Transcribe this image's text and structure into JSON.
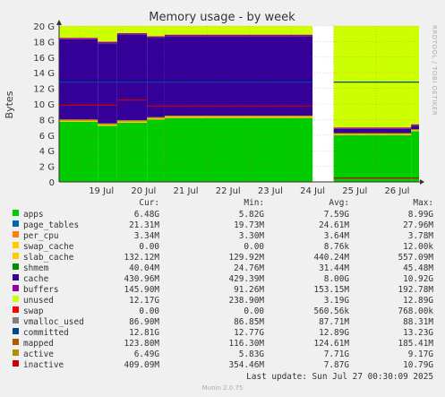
{
  "chart_data": {
    "type": "area",
    "title": "Memory usage - by week",
    "ylabel": "Bytes",
    "side_text": "RRDTOOL / TOBI OETIKER",
    "ylim": [
      0,
      20
    ],
    "y_unit": "G",
    "y_ticks": [
      "0",
      "2 G",
      "4 G",
      "6 G",
      "8 G",
      "10 G",
      "12 G",
      "14 G",
      "16 G",
      "18 G",
      "20 G"
    ],
    "x_ticks": [
      "19 Jul",
      "20 Jul",
      "21 Jul",
      "22 Jul",
      "23 Jul",
      "24 Jul",
      "25 Jul",
      "26 Jul"
    ],
    "gap": [
      "24 Jul 12:00",
      "25 Jul 00:00"
    ],
    "stack_segments_GB": [
      {
        "from": "18 Jul 12:00",
        "apps": 7.7,
        "slab_cache": 0.3,
        "cache": 10.3,
        "unused": 1.7
      },
      {
        "from": "19 Jul 10:00",
        "apps": 7.2,
        "slab_cache": 0.3,
        "cache": 10.3,
        "unused": 2.2
      },
      {
        "from": "19 Jul 21:00",
        "apps": 7.6,
        "slab_cache": 0.3,
        "cache": 11.0,
        "unused": 1.1
      },
      {
        "from": "20 Jul 14:00",
        "apps": 8.0,
        "slab_cache": 0.3,
        "cache": 10.2,
        "unused": 1.5
      },
      {
        "from": "21 Jul 00:00",
        "apps": 8.2,
        "slab_cache": 0.3,
        "cache": 10.2,
        "unused": 1.3
      },
      {
        "from": "25 Jul 00:00",
        "apps": 6.0,
        "slab_cache": 0.2,
        "cache": 0.6,
        "unused": 13.2
      },
      {
        "from": "26 Jul 20:00",
        "apps": 6.5,
        "slab_cache": 0.2,
        "cache": 0.5,
        "unused": 12.8
      }
    ],
    "committed_line_G": 12.8,
    "legend_headers": [
      "Cur:",
      "Min:",
      "Avg:",
      "Max:"
    ],
    "series": [
      {
        "name": "apps",
        "color": "#00cc00",
        "cur": "6.48G",
        "min": "5.82G",
        "avg": "7.59G",
        "max": "8.99G"
      },
      {
        "name": "page_tables",
        "color": "#0066b3",
        "cur": "21.31M",
        "min": "19.73M",
        "avg": "24.61M",
        "max": "27.96M"
      },
      {
        "name": "per_cpu",
        "color": "#ff8000",
        "cur": "3.34M",
        "min": "3.30M",
        "avg": "3.64M",
        "max": "3.78M"
      },
      {
        "name": "swap_cache",
        "color": "#ffcc00",
        "cur": "0.00",
        "min": "0.00",
        "avg": "8.76k",
        "max": "12.00k"
      },
      {
        "name": "slab_cache",
        "color": "#ffcc00",
        "cur": "132.12M",
        "min": "129.92M",
        "avg": "440.24M",
        "max": "557.09M"
      },
      {
        "name": "shmem",
        "color": "#008f00",
        "cur": "40.04M",
        "min": "24.76M",
        "avg": "31.44M",
        "max": "45.48M"
      },
      {
        "name": "cache",
        "color": "#330099",
        "cur": "430.96M",
        "min": "429.39M",
        "avg": "8.00G",
        "max": "10.92G"
      },
      {
        "name": "buffers",
        "color": "#990099",
        "cur": "145.90M",
        "min": "91.26M",
        "avg": "153.15M",
        "max": "192.78M"
      },
      {
        "name": "unused",
        "color": "#ccff00",
        "cur": "12.17G",
        "min": "238.90M",
        "avg": "3.19G",
        "max": "12.89G"
      },
      {
        "name": "swap",
        "color": "#ff0000",
        "cur": "0.00",
        "min": "0.00",
        "avg": "560.56k",
        "max": "768.00k"
      },
      {
        "name": "vmalloc_used",
        "color": "#808080",
        "cur": "86.90M",
        "min": "86.85M",
        "avg": "87.71M",
        "max": "88.31M"
      },
      {
        "name": "committed",
        "color": "#00488c",
        "cur": "12.81G",
        "min": "12.77G",
        "avg": "12.89G",
        "max": "13.23G"
      },
      {
        "name": "mapped",
        "color": "#b35a00",
        "cur": "123.80M",
        "min": "116.30M",
        "avg": "124.61M",
        "max": "185.41M"
      },
      {
        "name": "active",
        "color": "#b38f00",
        "cur": "6.49G",
        "min": "5.83G",
        "avg": "7.71G",
        "max": "9.17G"
      },
      {
        "name": "inactive",
        "color": "#cc0000",
        "cur": "409.09M",
        "min": "354.46M",
        "avg": "7.87G",
        "max": "10.79G"
      }
    ],
    "last_update": "Last update: Sun Jul 27 00:30:09 2025",
    "footer": "Munin 2.0.75"
  }
}
